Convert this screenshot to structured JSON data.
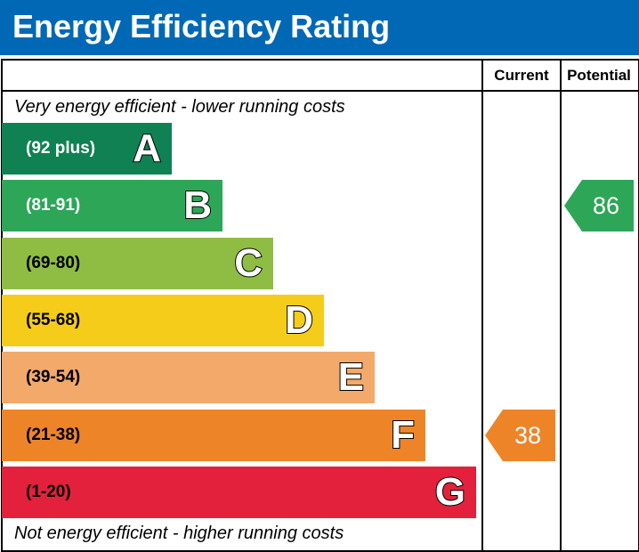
{
  "header": {
    "title": "Energy Efficiency Rating",
    "bg": "#0068b5"
  },
  "columns": {
    "current_label": "Current",
    "potential_label": "Potential"
  },
  "captions": {
    "top": "Very energy efficient - lower running costs",
    "bottom": "Not energy efficient - higher running costs"
  },
  "chart_data": {
    "type": "bar",
    "categories": [
      "A",
      "B",
      "C",
      "D",
      "E",
      "F",
      "G"
    ],
    "ranges": [
      "(92 plus)",
      "(81-91)",
      "(69-80)",
      "(55-68)",
      "(39-54)",
      "(21-38)",
      "(1-20)"
    ],
    "range_min": [
      92,
      81,
      69,
      55,
      39,
      21,
      1
    ],
    "colors": [
      "#108153",
      "#2ea657",
      "#8fbd44",
      "#f5cc19",
      "#f2a96a",
      "#ee8428",
      "#e3213c"
    ],
    "range_text_colors": [
      "#ffffff",
      "#ffffff",
      "#000000",
      "#000000",
      "#000000",
      "#000000",
      "#000000"
    ],
    "current": {
      "value": 38,
      "label": "38",
      "band": "F",
      "color": "#ee8428"
    },
    "potential": {
      "value": 86,
      "label": "86",
      "band": "B",
      "color": "#2ea657"
    }
  }
}
